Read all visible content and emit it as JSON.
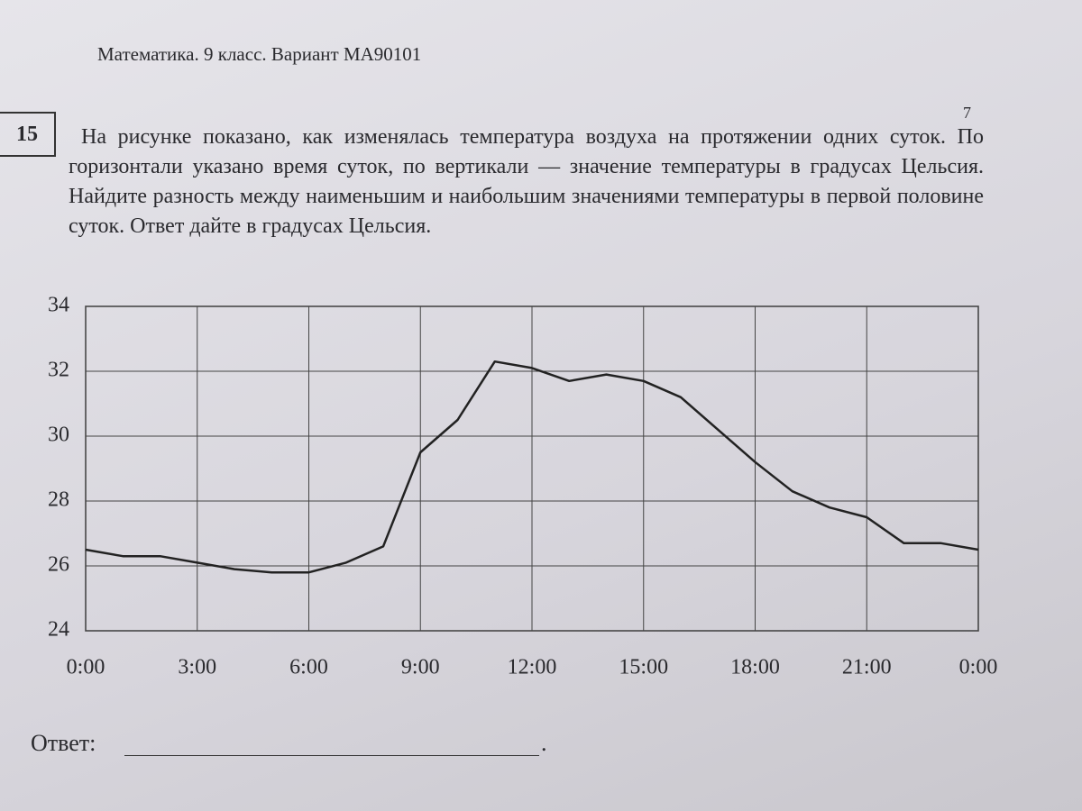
{
  "header": "Математика. 9 класс. Вариант МА90101",
  "page_number": "7",
  "problem": {
    "number": "15",
    "text": "На рисунке показано, как изменялась температура воздуха на протяжении одних суток. По горизонтали указано время суток, по вертикали — значение температуры в градусах Цельсия. Найдите разность между наименьшим и наибольшим значениями температуры в первой половине суток. Ответ дайте в градусах Цельсия."
  },
  "chart_data": {
    "type": "line",
    "color": "#222222",
    "grid": true,
    "x": [
      0,
      1,
      2,
      3,
      4,
      5,
      6,
      7,
      8,
      9,
      10,
      11,
      12,
      13,
      14,
      15,
      16,
      17,
      18,
      19,
      20,
      21,
      22,
      23,
      24
    ],
    "values": [
      26.5,
      26.3,
      26.3,
      26.1,
      25.9,
      25.8,
      25.8,
      26.1,
      26.6,
      29.5,
      30.5,
      32.3,
      32.1,
      31.7,
      31.9,
      31.7,
      31.2,
      30.2,
      29.2,
      28.3,
      27.8,
      27.5,
      26.7,
      26.7,
      26.5
    ],
    "xlim": [
      0,
      24
    ],
    "xticks": [
      {
        "value": 0,
        "label": "0:00"
      },
      {
        "value": 3,
        "label": "3:00"
      },
      {
        "value": 6,
        "label": "6:00"
      },
      {
        "value": 9,
        "label": "9:00"
      },
      {
        "value": 12,
        "label": "12:00"
      },
      {
        "value": 15,
        "label": "15:00"
      },
      {
        "value": 18,
        "label": "18:00"
      },
      {
        "value": 21,
        "label": "21:00"
      },
      {
        "value": 24,
        "label": "0:00"
      }
    ],
    "ylim": [
      24,
      34
    ],
    "yticks": [
      24,
      26,
      28,
      30,
      32,
      34
    ]
  },
  "answer_label": "Ответ:",
  "answer_end": "."
}
